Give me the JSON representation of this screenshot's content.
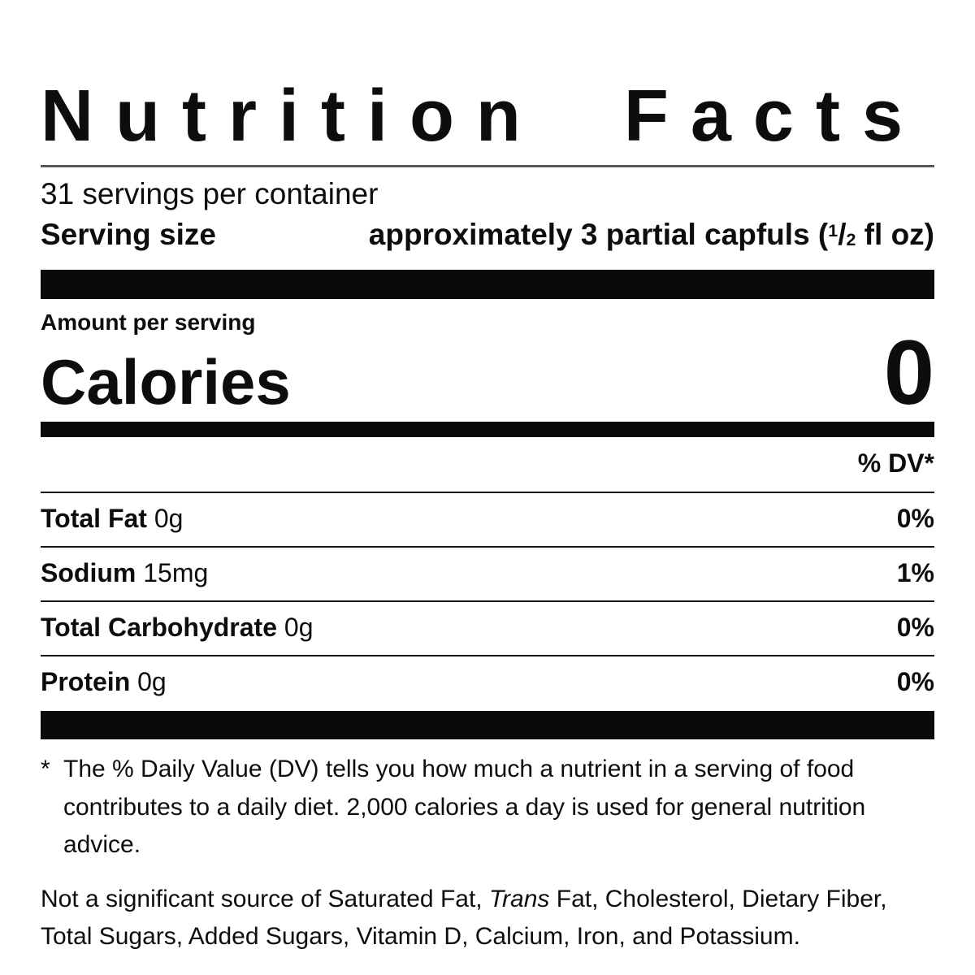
{
  "label": {
    "title": "Nutrition Facts",
    "servings_per_container": "31 servings per container",
    "serving_size_label": "Serving size",
    "serving_size_value_prefix": "approximately 3 partial capfuls (",
    "serving_size_frac_num": "1",
    "serving_size_frac_slash": "/",
    "serving_size_frac_den": "2",
    "serving_size_value_suffix": " fl oz)",
    "amount_per_serving": "Amount per serving",
    "calories_label": "Calories",
    "calories_value": "0",
    "dv_header": "% DV*",
    "nutrients": [
      {
        "name": "Total Fat",
        "amount": "0g",
        "dv": "0%"
      },
      {
        "name": "Sodium",
        "amount": "15mg",
        "dv": "1%"
      },
      {
        "name": "Total Carbohydrate",
        "amount": "0g",
        "dv": "0%"
      },
      {
        "name": "Protein",
        "amount": "0g",
        "dv": "0%"
      }
    ],
    "footnote_marker": "*",
    "footnote_text": "The % Daily Value (DV) tells you how much a nutrient in a serving of food contributes to a daily diet. 2,000 calories a day is used for general nutrition advice.",
    "not_significant_prefix": "Not a significant source of Saturated Fat, ",
    "not_significant_italic": "Trans",
    "not_significant_suffix": " Fat, Cholesterol, Dietary Fiber, Total Sugars, Added Sugars, Vitamin D, Calcium, Iron, and Potassium."
  },
  "colors": {
    "text": "#0d0d0d",
    "bars": "#0a0a0a",
    "title_rule": "#58585a",
    "background": "#ffffff"
  }
}
